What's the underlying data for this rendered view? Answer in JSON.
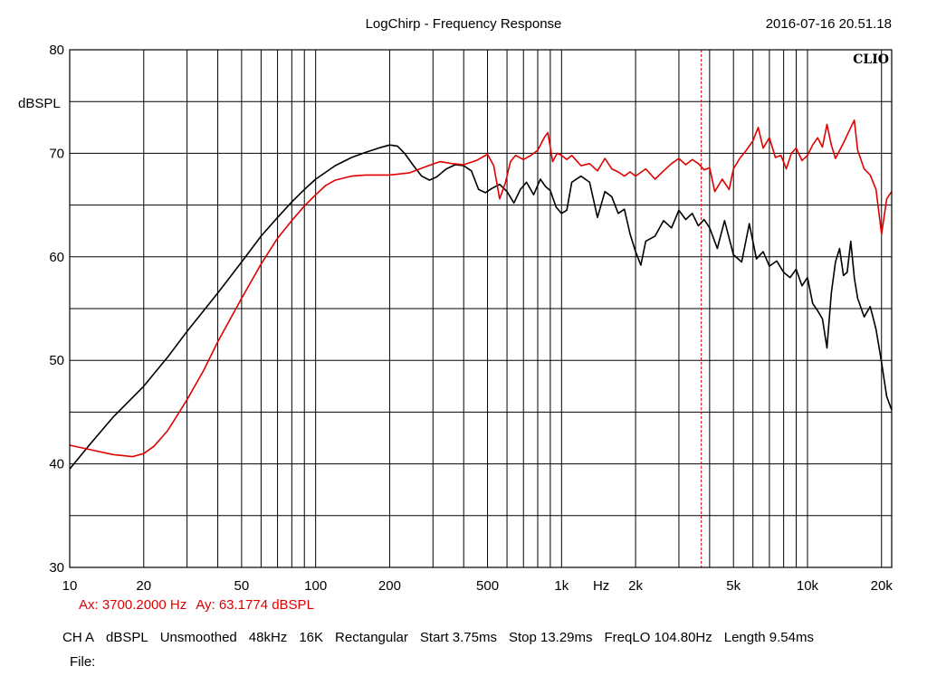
{
  "title": "LogChirp - Frequency Response",
  "timestamp": "2016-07-16 20.51.18",
  "brand": "CLIO",
  "cursor": {
    "ax_label": "Ax: 3700.2000 Hz",
    "ay_label": "Ay: 63.1774 dBSPL",
    "frequency_hz": 3700.2
  },
  "settings": {
    "items": [
      "CH A",
      "dBSPL",
      "Unsmoothed",
      "48kHz",
      "16K",
      "Rectangular",
      "Start 3.75ms",
      "Stop 13.29ms",
      "FreqLO 104.80Hz",
      "Length 9.54ms"
    ]
  },
  "file_label": "File:",
  "colors": {
    "background": "#ffffff",
    "grid": "#000000",
    "curve_black": "#000000",
    "curve_red": "#e00000",
    "cursor": "#e00000"
  },
  "chart_data": {
    "type": "line",
    "title": "LogChirp - Frequency Response",
    "xlabel": "Hz",
    "ylabel": "dBSPL",
    "x_scale": "log",
    "xlim": [
      10,
      22000
    ],
    "ylim": [
      30,
      80
    ],
    "grid": true,
    "x_tick_labels": [
      {
        "value": 10,
        "label": "10"
      },
      {
        "value": 20,
        "label": "20"
      },
      {
        "value": 50,
        "label": "50"
      },
      {
        "value": 100,
        "label": "100"
      },
      {
        "value": 200,
        "label": "200"
      },
      {
        "value": 500,
        "label": "500"
      },
      {
        "value": 1000,
        "label": "1k"
      },
      {
        "value": 2000,
        "label": "2k"
      },
      {
        "value": 5000,
        "label": "5k"
      },
      {
        "value": 10000,
        "label": "10k"
      },
      {
        "value": 20000,
        "label": "20k"
      }
    ],
    "x_unit_label": {
      "value": 1450,
      "label": "Hz"
    },
    "y_ticks": [
      {
        "value": 80,
        "label": "80"
      },
      {
        "value": 70,
        "label": "70"
      },
      {
        "value": 60,
        "label": "60"
      },
      {
        "value": 50,
        "label": "50"
      },
      {
        "value": 40,
        "label": "40"
      },
      {
        "value": 30,
        "label": "30"
      }
    ],
    "y_minor_ticks": [
      75,
      65,
      55,
      45,
      35
    ],
    "cursor_x": 3700.2,
    "series": [
      {
        "color": "#000000",
        "points": [
          [
            10,
            39.5
          ],
          [
            12,
            41.8
          ],
          [
            15,
            44.5
          ],
          [
            20,
            47.5
          ],
          [
            25,
            50.3
          ],
          [
            30,
            52.8
          ],
          [
            40,
            56.5
          ],
          [
            50,
            59.5
          ],
          [
            60,
            62.0
          ],
          [
            70,
            63.8
          ],
          [
            80,
            65.3
          ],
          [
            90,
            66.5
          ],
          [
            100,
            67.5
          ],
          [
            120,
            68.8
          ],
          [
            140,
            69.6
          ],
          [
            160,
            70.1
          ],
          [
            180,
            70.5
          ],
          [
            200,
            70.8
          ],
          [
            215,
            70.7
          ],
          [
            230,
            70.0
          ],
          [
            250,
            68.8
          ],
          [
            270,
            67.8
          ],
          [
            290,
            67.4
          ],
          [
            310,
            67.7
          ],
          [
            340,
            68.5
          ],
          [
            370,
            68.9
          ],
          [
            400,
            68.8
          ],
          [
            430,
            68.3
          ],
          [
            460,
            66.5
          ],
          [
            490,
            66.2
          ],
          [
            520,
            66.6
          ],
          [
            560,
            67.0
          ],
          [
            600,
            66.3
          ],
          [
            640,
            65.2
          ],
          [
            680,
            66.5
          ],
          [
            720,
            67.2
          ],
          [
            770,
            66.0
          ],
          [
            820,
            67.5
          ],
          [
            860,
            66.8
          ],
          [
            900,
            66.4
          ],
          [
            950,
            64.8
          ],
          [
            1000,
            64.2
          ],
          [
            1050,
            64.5
          ],
          [
            1100,
            67.2
          ],
          [
            1200,
            67.8
          ],
          [
            1300,
            67.2
          ],
          [
            1400,
            63.8
          ],
          [
            1500,
            66.3
          ],
          [
            1600,
            65.8
          ],
          [
            1700,
            64.2
          ],
          [
            1800,
            64.6
          ],
          [
            1900,
            62.2
          ],
          [
            2000,
            60.5
          ],
          [
            2100,
            59.2
          ],
          [
            2200,
            61.5
          ],
          [
            2400,
            62.0
          ],
          [
            2600,
            63.5
          ],
          [
            2800,
            62.8
          ],
          [
            3000,
            64.5
          ],
          [
            3200,
            63.6
          ],
          [
            3400,
            64.2
          ],
          [
            3600,
            63.0
          ],
          [
            3800,
            63.6
          ],
          [
            4000,
            62.8
          ],
          [
            4300,
            60.8
          ],
          [
            4600,
            63.5
          ],
          [
            5000,
            60.2
          ],
          [
            5400,
            59.5
          ],
          [
            5800,
            63.2
          ],
          [
            6200,
            59.8
          ],
          [
            6600,
            60.5
          ],
          [
            7000,
            59.1
          ],
          [
            7500,
            59.6
          ],
          [
            8000,
            58.5
          ],
          [
            8500,
            58.0
          ],
          [
            9000,
            58.8
          ],
          [
            9500,
            57.2
          ],
          [
            10000,
            58.0
          ],
          [
            10500,
            55.5
          ],
          [
            11000,
            54.8
          ],
          [
            11500,
            54.0
          ],
          [
            12000,
            51.2
          ],
          [
            12500,
            56.5
          ],
          [
            13000,
            59.5
          ],
          [
            13500,
            60.8
          ],
          [
            14000,
            58.2
          ],
          [
            14500,
            58.5
          ],
          [
            15000,
            61.5
          ],
          [
            15500,
            58.0
          ],
          [
            16000,
            56.0
          ],
          [
            17000,
            54.2
          ],
          [
            18000,
            55.2
          ],
          [
            19000,
            53.0
          ],
          [
            20000,
            49.8
          ],
          [
            21000,
            46.5
          ],
          [
            22000,
            45.2
          ]
        ]
      },
      {
        "color": "#e00000",
        "points": [
          [
            10,
            41.8
          ],
          [
            12,
            41.4
          ],
          [
            15,
            40.9
          ],
          [
            18,
            40.7
          ],
          [
            20,
            41.0
          ],
          [
            22,
            41.7
          ],
          [
            25,
            43.2
          ],
          [
            30,
            46.2
          ],
          [
            35,
            49.0
          ],
          [
            40,
            51.8
          ],
          [
            50,
            56.0
          ],
          [
            60,
            59.3
          ],
          [
            70,
            61.8
          ],
          [
            80,
            63.5
          ],
          [
            90,
            64.9
          ],
          [
            100,
            66.0
          ],
          [
            110,
            66.9
          ],
          [
            120,
            67.4
          ],
          [
            140,
            67.8
          ],
          [
            160,
            67.9
          ],
          [
            200,
            67.9
          ],
          [
            240,
            68.1
          ],
          [
            280,
            68.7
          ],
          [
            320,
            69.2
          ],
          [
            360,
            69.0
          ],
          [
            400,
            68.9
          ],
          [
            450,
            69.3
          ],
          [
            500,
            69.9
          ],
          [
            530,
            68.8
          ],
          [
            560,
            65.6
          ],
          [
            590,
            67.1
          ],
          [
            620,
            69.2
          ],
          [
            650,
            69.8
          ],
          [
            700,
            69.4
          ],
          [
            750,
            69.8
          ],
          [
            800,
            70.3
          ],
          [
            850,
            71.5
          ],
          [
            880,
            72.0
          ],
          [
            920,
            69.2
          ],
          [
            960,
            70.0
          ],
          [
            1000,
            69.8
          ],
          [
            1050,
            69.4
          ],
          [
            1100,
            69.8
          ],
          [
            1200,
            68.8
          ],
          [
            1300,
            69.0
          ],
          [
            1400,
            68.3
          ],
          [
            1500,
            69.5
          ],
          [
            1600,
            68.5
          ],
          [
            1700,
            68.2
          ],
          [
            1800,
            67.8
          ],
          [
            1900,
            68.2
          ],
          [
            2000,
            67.8
          ],
          [
            2200,
            68.5
          ],
          [
            2400,
            67.5
          ],
          [
            2600,
            68.3
          ],
          [
            2800,
            69.0
          ],
          [
            3000,
            69.5
          ],
          [
            3200,
            68.9
          ],
          [
            3400,
            69.4
          ],
          [
            3600,
            69.0
          ],
          [
            3800,
            68.4
          ],
          [
            4000,
            68.6
          ],
          [
            4200,
            66.3
          ],
          [
            4500,
            67.5
          ],
          [
            4800,
            66.5
          ],
          [
            5000,
            68.5
          ],
          [
            5300,
            69.5
          ],
          [
            5600,
            70.2
          ],
          [
            6000,
            71.2
          ],
          [
            6300,
            72.5
          ],
          [
            6600,
            70.5
          ],
          [
            7000,
            71.5
          ],
          [
            7400,
            69.6
          ],
          [
            7800,
            69.8
          ],
          [
            8200,
            68.5
          ],
          [
            8600,
            70.0
          ],
          [
            9000,
            70.5
          ],
          [
            9500,
            69.3
          ],
          [
            10000,
            69.8
          ],
          [
            10500,
            70.8
          ],
          [
            11000,
            71.5
          ],
          [
            11500,
            70.6
          ],
          [
            12000,
            72.8
          ],
          [
            12500,
            70.8
          ],
          [
            13000,
            69.5
          ],
          [
            14000,
            71.0
          ],
          [
            15000,
            72.5
          ],
          [
            15500,
            73.2
          ],
          [
            16000,
            70.3
          ],
          [
            17000,
            68.5
          ],
          [
            18000,
            67.9
          ],
          [
            19000,
            66.5
          ],
          [
            20000,
            62.2
          ],
          [
            21000,
            65.6
          ],
          [
            22000,
            66.3
          ]
        ]
      }
    ]
  }
}
